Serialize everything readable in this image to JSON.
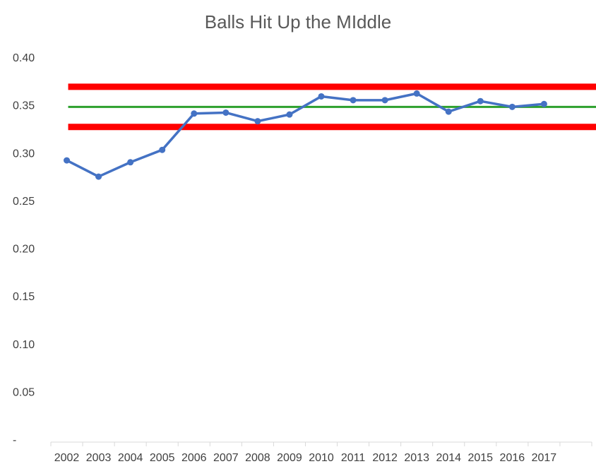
{
  "chart_data": {
    "type": "line",
    "title": "Balls Hit Up the MIddle",
    "categories": [
      "2002",
      "2003",
      "2004",
      "2005",
      "2006",
      "2007",
      "2008",
      "2009",
      "2010",
      "2011",
      "2012",
      "2013",
      "2014",
      "2015",
      "2016",
      "2017"
    ],
    "series": [
      {
        "values": [
          0.292,
          0.275,
          0.29,
          0.303,
          0.341,
          0.342,
          0.333,
          0.34,
          0.359,
          0.355,
          0.355,
          0.362,
          0.343,
          0.354,
          0.348,
          0.351
        ],
        "color": "#4472C4"
      }
    ],
    "reference_lines": [
      {
        "kind": "upper-limit",
        "value": 0.369,
        "color": "#FF0000"
      },
      {
        "kind": "average",
        "value": 0.348,
        "color": "#2CA02C"
      },
      {
        "kind": "lower-limit",
        "value": 0.327,
        "color": "#FF0000"
      }
    ],
    "y_ticks": [
      {
        "value": 0.4,
        "label": "0.40"
      },
      {
        "value": 0.35,
        "label": "0.35"
      },
      {
        "value": 0.3,
        "label": "0.30"
      },
      {
        "value": 0.25,
        "label": "0.25"
      },
      {
        "value": 0.2,
        "label": "0.20"
      },
      {
        "value": 0.15,
        "label": "0.15"
      },
      {
        "value": 0.1,
        "label": "0.10"
      },
      {
        "value": 0.05,
        "label": "0.05"
      },
      {
        "value": 0.0,
        "label": "-"
      }
    ],
    "ylim": [
      0,
      0.4
    ],
    "x_slots": 17,
    "grid": false,
    "legend": "none"
  }
}
